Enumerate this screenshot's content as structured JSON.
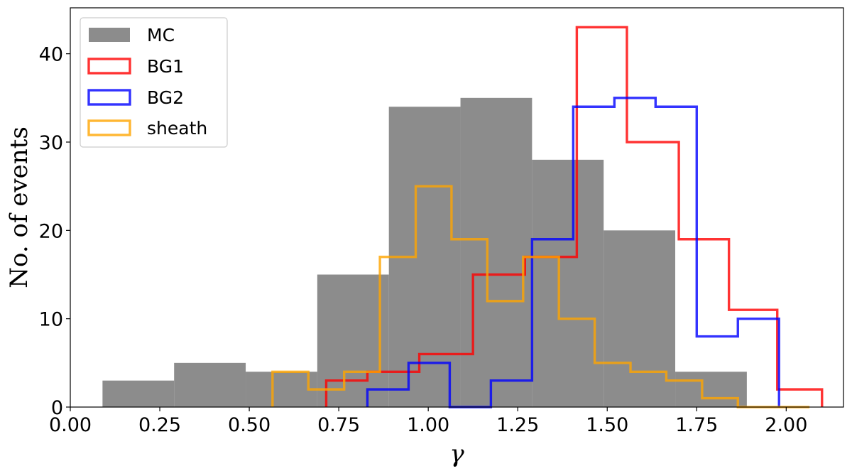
{
  "chart_data": {
    "type": "histogram",
    "title": "",
    "xlabel": "γ",
    "ylabel": "No. of events",
    "xlim": [
      0.0,
      2.16
    ],
    "ylim": [
      0,
      45.2
    ],
    "xticks": [
      0.0,
      0.25,
      0.5,
      0.75,
      1.0,
      1.25,
      1.5,
      1.75,
      2.0
    ],
    "xtick_labels": [
      "0.00",
      "0.25",
      "0.50",
      "0.75",
      "1.00",
      "1.25",
      "1.50",
      "1.75",
      "2.00"
    ],
    "yticks": [
      0,
      10,
      20,
      30,
      40
    ],
    "ytick_labels": [
      "0",
      "10",
      "20",
      "30",
      "40"
    ],
    "legend_position": "top-left",
    "series": [
      {
        "name": "MC",
        "style": "filled",
        "color": "#808080",
        "edges": [
          0.09,
          0.29,
          0.49,
          0.69,
          0.89,
          1.09,
          1.29,
          1.49,
          1.69,
          1.89
        ],
        "counts": [
          3,
          5,
          4,
          15,
          34,
          35,
          28,
          20,
          4
        ]
      },
      {
        "name": "BG1",
        "style": "step",
        "color": "#ff0000",
        "edges": [
          0.715,
          0.83,
          0.975,
          1.125,
          1.27,
          1.415,
          1.555,
          1.7,
          1.84,
          1.975,
          2.1
        ],
        "counts": [
          3,
          4,
          6,
          15,
          17,
          43,
          30,
          19,
          11,
          2
        ]
      },
      {
        "name": "BG2",
        "style": "step",
        "color": "#0000ff",
        "edges": [
          0.83,
          0.945,
          1.06,
          1.175,
          1.29,
          1.405,
          1.52,
          1.635,
          1.75,
          1.865,
          1.98
        ],
        "counts": [
          2,
          5,
          0,
          3,
          19,
          34,
          35,
          34,
          8,
          10
        ]
      },
      {
        "name": "sheath",
        "style": "step",
        "color": "#ffa500",
        "edges": [
          0.565,
          0.665,
          0.765,
          0.865,
          0.965,
          1.065,
          1.165,
          1.265,
          1.365,
          1.465,
          1.565,
          1.665,
          1.765,
          1.865,
          1.965,
          2.065
        ],
        "counts": [
          4,
          2,
          4,
          17,
          25,
          19,
          12,
          17,
          10,
          5,
          4,
          3,
          1,
          0,
          0
        ]
      }
    ]
  }
}
